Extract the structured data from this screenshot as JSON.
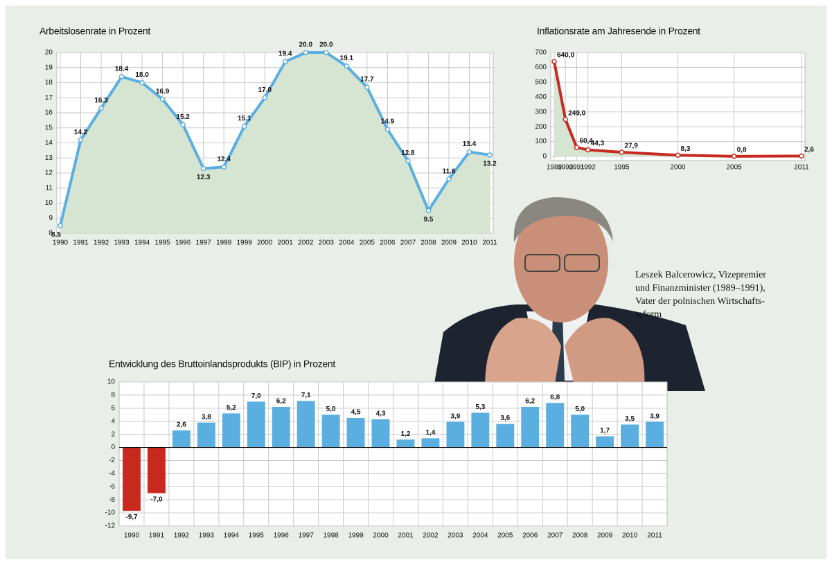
{
  "chart_data": [
    {
      "type": "line",
      "title": "Arbeitslosenrate in Prozent",
      "categories": [
        "1990",
        "1991",
        "1992",
        "1993",
        "1994",
        "1995",
        "1996",
        "1997",
        "1998",
        "1999",
        "2000",
        "2001",
        "2002",
        "2003",
        "2004",
        "2005",
        "2006",
        "2007",
        "2008",
        "2009",
        "2010",
        "2011"
      ],
      "values": [
        8.5,
        14.2,
        16.3,
        18.4,
        18.0,
        16.9,
        15.2,
        12.3,
        12.4,
        15.1,
        17.0,
        19.4,
        20.0,
        20.0,
        19.1,
        17.7,
        14.9,
        12.8,
        9.5,
        11.6,
        13.4,
        13.2
      ],
      "value_labels": [
        "8.5",
        "14.2",
        "16.3",
        "18.4",
        "18.0",
        "16.9",
        "15.2",
        "12.3",
        "12.4",
        "15.1",
        "17.0",
        "19.4",
        "20.0",
        "20.0",
        "19.1",
        "17.7",
        "14.9",
        "12.8",
        "9.5",
        "11.6",
        "13.4",
        "13.2"
      ],
      "color": "#5aaee0",
      "area_color": "#d6e4d2",
      "ylim": [
        8,
        20
      ],
      "yticks": [
        8,
        9,
        10,
        11,
        12,
        13,
        14,
        15,
        16,
        17,
        18,
        19,
        20
      ],
      "grid": true
    },
    {
      "type": "line",
      "title": "Inflationsrate am Jahresende in Prozent",
      "x": [
        1989,
        1990,
        1991,
        1992,
        1995,
        2000,
        2005,
        2011
      ],
      "values": [
        640,
        249,
        60.4,
        44.3,
        27.9,
        8.3,
        0.8,
        2.6
      ],
      "value_labels": [
        "640,0",
        "249,0",
        "60,4",
        "44,3",
        "27,9",
        "8,3",
        "0,8",
        "2,6"
      ],
      "color": "#c8291f",
      "area_color": "#d6e4d2",
      "xlim": [
        1989,
        2011
      ],
      "xticks": [
        1989,
        1990,
        1991,
        1992,
        1995,
        2000,
        2005,
        2011
      ],
      "ylim": [
        0,
        700
      ],
      "yticks": [
        0,
        100,
        200,
        300,
        400,
        500,
        600,
        700
      ],
      "grid": true
    },
    {
      "type": "bar",
      "title": "Entwicklung des Bruttoinlandsprodukts (BIP) in Prozent",
      "categories": [
        "1990",
        "1991",
        "1992",
        "1993",
        "1994",
        "1995",
        "1996",
        "1997",
        "1998",
        "1999",
        "2000",
        "2001",
        "2002",
        "2003",
        "2004",
        "2005",
        "2006",
        "2007",
        "2008",
        "2009",
        "2010",
        "2011"
      ],
      "values": [
        -9.7,
        -7.0,
        2.6,
        3.8,
        5.2,
        7.0,
        6.2,
        7.1,
        5.0,
        4.5,
        4.3,
        1.2,
        1.4,
        3.9,
        5.3,
        3.6,
        6.2,
        6.8,
        5.0,
        1.7,
        3.5,
        3.9
      ],
      "value_labels": [
        "-9,7",
        "-7,0",
        "2,6",
        "3,8",
        "5,2",
        "7,0",
        "6,2",
        "7,1",
        "5,0",
        "4,5",
        "4,3",
        "1,2",
        "1,4",
        "3,9",
        "5,3",
        "3,6",
        "6,2",
        "6,8",
        "5,0",
        "1,7",
        "3,5",
        "3,9"
      ],
      "color": "#5aaee0",
      "negative_color": "#c8291f",
      "ylim": [
        -12,
        10
      ],
      "yticks": [
        -12,
        -10,
        -8,
        -6,
        -4,
        -2,
        0,
        2,
        4,
        6,
        8,
        10
      ],
      "grid": true
    }
  ],
  "caption": {
    "lines": [
      "Leszek Balcerowicz, Vizepremier",
      "und Finanzminister (1989–1991),",
      "Vater der polnischen Wirtschafts-",
      "reform"
    ]
  }
}
